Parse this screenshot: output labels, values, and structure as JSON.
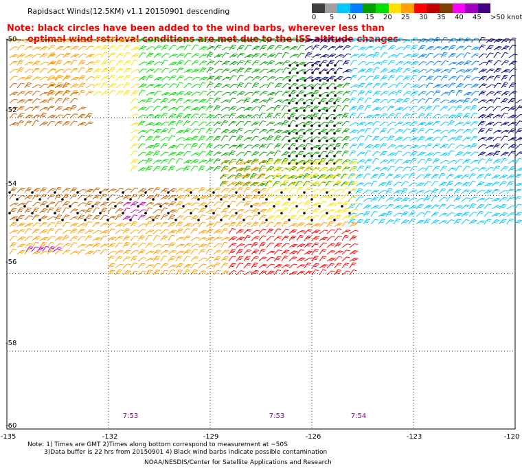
{
  "title": "Rapidsact Winds(12.5KM) v1.1 20150901 descending",
  "note": {
    "line1": "Note: black circles have been added to the wind barbs, wherever less than",
    "line2": "optimal wind retrieval conditions are met due to the ISS altitude changes"
  },
  "colorbar": {
    "labels": [
      "0",
      "5",
      "10",
      "15",
      "20",
      "25",
      "30",
      "35",
      "40",
      "45",
      ">50 knots"
    ],
    "colors": [
      "#404040",
      "#a0a0a0",
      "#00c8ff",
      "#0080ff",
      "#00a000",
      "#00e000",
      "#ffe000",
      "#ffa000",
      "#ff0000",
      "#c00000",
      "#804000",
      "#ff00ff",
      "#a000c0",
      "#400080"
    ]
  },
  "map": {
    "y_labels": [
      "-50",
      "-52",
      "-54",
      "-56",
      "-58",
      "-60"
    ],
    "x_labels": [
      "-135",
      "-132",
      "-129",
      "-126",
      "-123",
      "-120"
    ],
    "times": [
      "7:53",
      "7:53",
      "7:54"
    ],
    "swaths": [
      {
        "name": "northeast swath",
        "dominant_colors": [
          "#00a000",
          "#0080ff",
          "#00c8ff",
          "#000080"
        ],
        "flagged_cells": "black circles in column near lon -127 to -126"
      },
      {
        "name": "southwest swath",
        "dominant_colors": [
          "#ffe000",
          "#ffa000",
          "#ff0000",
          "#c00000",
          "#c000c0"
        ],
        "flagged_cells": "black circles near lat -54 to -55"
      }
    ]
  },
  "footer": {
    "line1": "Note: 1) Times are GMT 2)Times along bottom correspond to measurement at ~50S",
    "line2": "3)Data buffer is 22 hrs from 20150901 4) Black wind barbs indicate possible contamination",
    "line3": "NOAA/NESDIS/Center for Satellite Applications and Research"
  }
}
